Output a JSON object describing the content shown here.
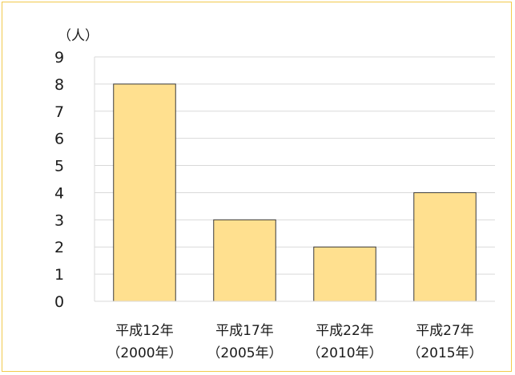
{
  "chart_data": {
    "type": "bar",
    "unit_label": "（人）",
    "categories": [
      [
        "平成12年",
        "（2000年）"
      ],
      [
        "平成17年",
        "（2005年）"
      ],
      [
        "平成22年",
        "（2010年）"
      ],
      [
        "平成27年",
        "（2015年）"
      ]
    ],
    "values": [
      8,
      3,
      2,
      4
    ],
    "ylim": [
      0,
      9
    ],
    "yticks": [
      0,
      1,
      2,
      3,
      4,
      5,
      6,
      7,
      8,
      9
    ],
    "grid": true,
    "colors": {
      "bar_fill": "#ffe08f",
      "bar_stroke": "#3a3a3a",
      "frame": "#f2c94c",
      "grid": "#d9d9d9"
    }
  }
}
